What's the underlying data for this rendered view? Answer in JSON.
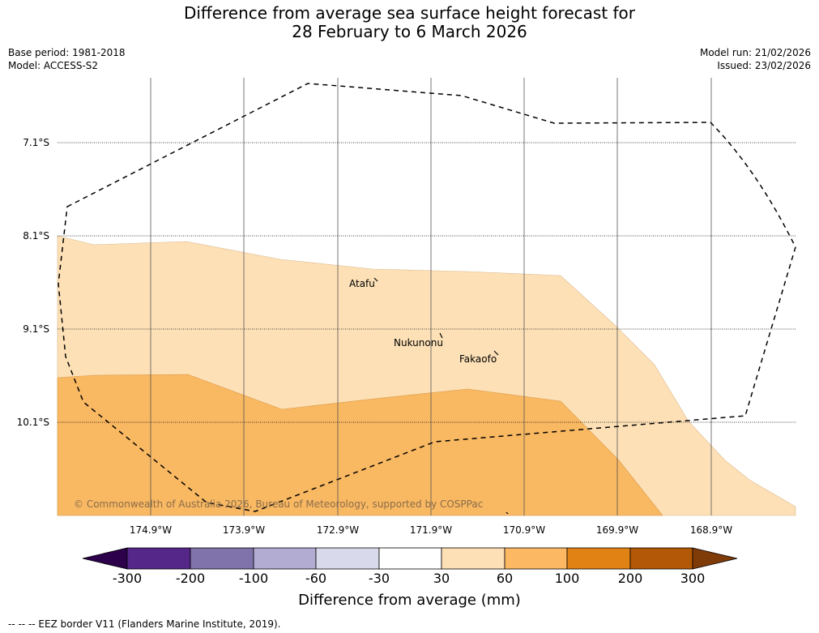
{
  "title": {
    "line1": "Difference from average sea surface height forecast for",
    "line2": "28 February to 6 March 2026"
  },
  "meta": {
    "base_period": "Base period: 1981-2018",
    "model": "Model: ACCESS-S2",
    "model_run": "Model run: 21/02/2026",
    "issued": "Issued: 23/02/2026"
  },
  "map": {
    "latitudes": [
      "7.1°S",
      "8.1°S",
      "9.1°S",
      "10.1°S"
    ],
    "longitudes": [
      "174.9°W",
      "173.9°W",
      "172.9°W",
      "171.9°W",
      "170.9°W",
      "169.9°W",
      "168.9°W"
    ],
    "places": [
      "Atafu",
      "Nukunonu",
      "Fakaofo"
    ],
    "copyright": "© Commonwealth of Australia 2026, Bureau of Meteorology, supported by COSPPac",
    "colors": {
      "band_30_60": "#fde0b6",
      "band_60_100": "#f9b862"
    }
  },
  "colorbar": {
    "ticks": [
      "-300",
      "-200",
      "-100",
      "-60",
      "-30",
      "30",
      "60",
      "100",
      "200",
      "300"
    ],
    "colors": [
      "#2d004b",
      "#542788",
      "#8073ac",
      "#b2abd2",
      "#d8daeb",
      "#ffffff",
      "#fee0b6",
      "#fdb863",
      "#e08214",
      "#b35806",
      "#7f3b08"
    ],
    "label": "Difference from average (mm)"
  },
  "legend": {
    "eez": "--  --  -- EEZ border V11 (Flanders Marine Institute, 2019)."
  }
}
